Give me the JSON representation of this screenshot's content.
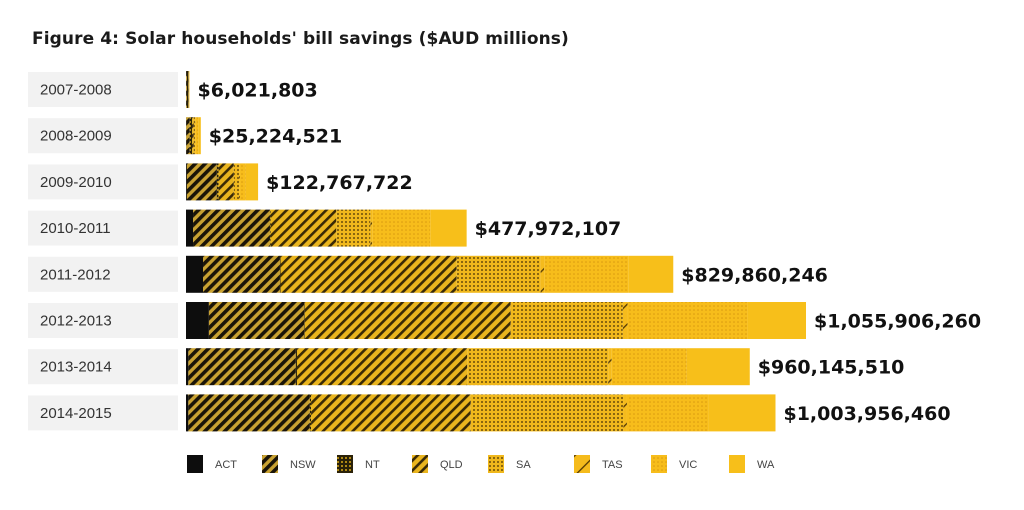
{
  "chart_data": {
    "type": "bar",
    "orientation": "horizontal",
    "stacked": true,
    "title": "Figure 4: Solar households' bill savings ($AUD millions)",
    "xlabel": "",
    "ylabel": "",
    "grid": false,
    "legend_position": "bottom",
    "xlim": [
      0,
      1100
    ],
    "categories": [
      "2007-2008",
      "2008-2009",
      "2009-2010",
      "2010-2011",
      "2011-2012",
      "2012-2013",
      "2013-2014",
      "2014-2015"
    ],
    "totals_label": [
      "$6,021,803",
      "$25,224,521",
      "$122,767,722",
      "$477,972,107",
      "$829,860,246",
      "$1,055,906,260",
      "$960,145,510",
      "$1,003,956,460"
    ],
    "totals": [
      6.02,
      25.22,
      122.77,
      477.97,
      829.86,
      1055.91,
      960.15,
      1003.96
    ],
    "series": [
      {
        "name": "ACT",
        "pattern": "solid-black",
        "values": [
          0.1,
          0.3,
          1.5,
          12,
          29,
          39,
          4,
          4
        ]
      },
      {
        "name": "NSW",
        "pattern": "hatch-dark",
        "values": [
          1.5,
          6,
          51,
          131,
          131,
          162,
          183,
          207
        ]
      },
      {
        "name": "NT",
        "pattern": "dots-dark",
        "values": [
          2.5,
          4,
          3,
          1,
          1,
          1,
          2,
          2
        ]
      },
      {
        "name": "QLD",
        "pattern": "hatch-yellow",
        "values": [
          0.5,
          3,
          26,
          112,
          300,
          351,
          290,
          272
        ]
      },
      {
        "name": "SA",
        "pattern": "dots-yellow",
        "values": [
          0.5,
          2,
          9,
          58,
          143,
          191,
          240,
          260
        ]
      },
      {
        "name": "TAS",
        "pattern": "sparse-hatch",
        "values": [
          0.2,
          0.5,
          1.5,
          3,
          6,
          8,
          6,
          6
        ]
      },
      {
        "name": "VIC",
        "pattern": "fine-dots",
        "values": [
          0.4,
          5,
          10,
          99,
          144,
          205,
          128,
          139
        ]
      },
      {
        "name": "WA",
        "pattern": "solid-yellow",
        "values": [
          0.32,
          4.42,
          20.77,
          61.97,
          75.86,
          98.91,
          107.15,
          113.96
        ]
      }
    ],
    "colors": {
      "yellow": "#f7bd1b",
      "black": "#111111",
      "row_band": "#f2f2f2"
    }
  }
}
